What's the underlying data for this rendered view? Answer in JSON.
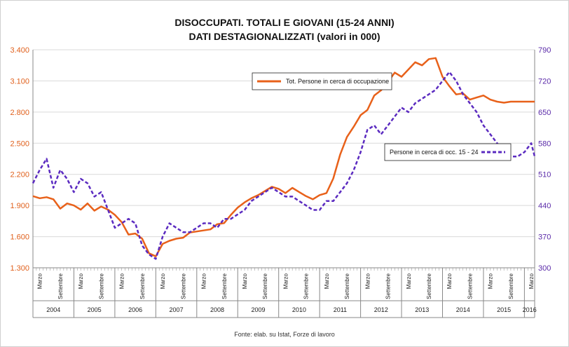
{
  "chart_data": {
    "type": "line",
    "title": "DISOCCUPATI. TOTALI E GIOVANI (15-24 ANNI)",
    "subtitle": "DATI DESTAGIONALIZZATI (valori in 000)",
    "source": "Fonte: elab. su Istat, Forze di lavoro",
    "colors": {
      "total": "#e8611a",
      "youth": "#5b2bc0"
    },
    "y_left": {
      "ticks": [
        "1.300",
        "1.600",
        "1.900",
        "2.200",
        "2.500",
        "2.800",
        "3.100",
        "3.400"
      ],
      "range": [
        1300,
        3400
      ]
    },
    "y_right": {
      "ticks": [
        "300",
        "370",
        "440",
        "510",
        "580",
        "650",
        "720",
        "790"
      ],
      "range": [
        300,
        790
      ]
    },
    "grid": true,
    "x_range": [
      "2004-01",
      "2016-04"
    ],
    "years": [
      "2004",
      "2005",
      "2006",
      "2007",
      "2008",
      "2009",
      "2010",
      "2011",
      "2012",
      "2013",
      "2014",
      "2015",
      "2016"
    ],
    "month_labels": {
      "marzo": "Marzo",
      "settembre": "Settembre",
      "marzo_months": [
        "2004-03",
        "2005-03",
        "2006-03",
        "2007-03",
        "2008-03",
        "2009-03",
        "2010-03",
        "2011-03",
        "2012-03",
        "2013-03",
        "2014-03",
        "2015-03",
        "2016-03"
      ],
      "settembre_months": [
        "2004-09",
        "2005-09",
        "2006-09",
        "2007-09",
        "2008-09",
        "2009-09",
        "2010-09",
        "2011-09",
        "2012-09",
        "2013-09",
        "2014-09",
        "2015-09"
      ]
    },
    "series": [
      {
        "name": "Tot. Persone in cerca di occupazione",
        "axis": "left",
        "style": "solid",
        "x": [
          "2004-01",
          "2004-03",
          "2004-05",
          "2004-07",
          "2004-09",
          "2004-11",
          "2005-01",
          "2005-03",
          "2005-05",
          "2005-07",
          "2005-09",
          "2005-11",
          "2006-01",
          "2006-03",
          "2006-05",
          "2006-07",
          "2006-09",
          "2006-11",
          "2007-01",
          "2007-03",
          "2007-05",
          "2007-07",
          "2007-09",
          "2007-11",
          "2008-01",
          "2008-03",
          "2008-05",
          "2008-07",
          "2008-09",
          "2008-11",
          "2009-01",
          "2009-03",
          "2009-05",
          "2009-07",
          "2009-09",
          "2009-11",
          "2010-01",
          "2010-03",
          "2010-05",
          "2010-07",
          "2010-09",
          "2010-11",
          "2011-01",
          "2011-03",
          "2011-05",
          "2011-07",
          "2011-09",
          "2011-11",
          "2012-01",
          "2012-03",
          "2012-05",
          "2012-07",
          "2012-09",
          "2012-11",
          "2013-01",
          "2013-03",
          "2013-05",
          "2013-07",
          "2013-09",
          "2013-11",
          "2014-01",
          "2014-03",
          "2014-05",
          "2014-07",
          "2014-09",
          "2014-11",
          "2015-01",
          "2015-03",
          "2015-05",
          "2015-07",
          "2015-09",
          "2015-11",
          "2016-01",
          "2016-03",
          "2016-04"
        ],
        "values": [
          1990,
          1970,
          1980,
          1960,
          1870,
          1920,
          1900,
          1860,
          1920,
          1850,
          1890,
          1860,
          1810,
          1740,
          1620,
          1630,
          1580,
          1440,
          1410,
          1530,
          1560,
          1580,
          1590,
          1640,
          1650,
          1660,
          1670,
          1720,
          1730,
          1810,
          1880,
          1930,
          1970,
          2000,
          2040,
          2080,
          2060,
          2020,
          2070,
          2030,
          1990,
          1960,
          2000,
          2020,
          2160,
          2390,
          2560,
          2660,
          2770,
          2820,
          2960,
          3010,
          3090,
          3180,
          3140,
          3210,
          3280,
          3250,
          3310,
          3320,
          3140,
          3050,
          2970,
          2980,
          2920,
          2940,
          2960,
          2920,
          2900,
          2890,
          2900,
          2900,
          2900,
          2900,
          2900
        ]
      },
      {
        "name": "Persone in cerca di occ. 15 - 24",
        "axis": "right",
        "style": "dashed",
        "x": [
          "2004-01",
          "2004-03",
          "2004-05",
          "2004-07",
          "2004-09",
          "2004-11",
          "2005-01",
          "2005-03",
          "2005-05",
          "2005-07",
          "2005-09",
          "2005-11",
          "2006-01",
          "2006-03",
          "2006-05",
          "2006-07",
          "2006-09",
          "2006-11",
          "2007-01",
          "2007-03",
          "2007-05",
          "2007-07",
          "2007-09",
          "2007-11",
          "2008-01",
          "2008-03",
          "2008-05",
          "2008-07",
          "2008-09",
          "2008-11",
          "2009-01",
          "2009-03",
          "2009-05",
          "2009-07",
          "2009-09",
          "2009-11",
          "2010-01",
          "2010-03",
          "2010-05",
          "2010-07",
          "2010-09",
          "2010-11",
          "2011-01",
          "2011-03",
          "2011-05",
          "2011-07",
          "2011-09",
          "2011-11",
          "2012-01",
          "2012-03",
          "2012-05",
          "2012-07",
          "2012-09",
          "2012-11",
          "2013-01",
          "2013-03",
          "2013-05",
          "2013-07",
          "2013-09",
          "2013-11",
          "2014-01",
          "2014-03",
          "2014-05",
          "2014-07",
          "2014-09",
          "2014-11",
          "2015-01",
          "2015-03",
          "2015-05",
          "2015-07",
          "2015-09",
          "2015-11",
          "2016-01",
          "2016-03",
          "2016-04"
        ],
        "values": [
          490,
          520,
          545,
          480,
          520,
          500,
          470,
          500,
          490,
          460,
          470,
          430,
          390,
          400,
          410,
          400,
          350,
          330,
          320,
          370,
          400,
          390,
          380,
          380,
          390,
          400,
          400,
          390,
          410,
          410,
          420,
          430,
          450,
          460,
          470,
          480,
          470,
          460,
          460,
          450,
          440,
          430,
          430,
          450,
          450,
          470,
          490,
          520,
          560,
          610,
          620,
          600,
          620,
          640,
          660,
          650,
          670,
          680,
          690,
          700,
          720,
          740,
          720,
          690,
          670,
          650,
          620,
          600,
          580,
          560,
          550,
          550,
          560,
          580,
          550
        ]
      }
    ]
  }
}
